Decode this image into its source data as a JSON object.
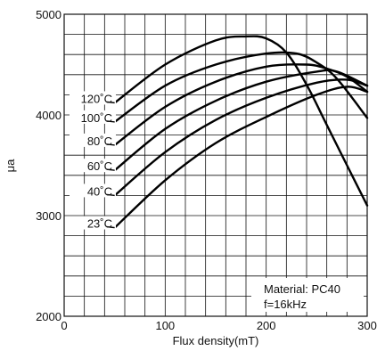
{
  "chart_data": {
    "type": "line",
    "title": "",
    "xlabel": "Flux density(mT)",
    "ylabel": "μa",
    "xlim": [
      0,
      300
    ],
    "ylim": [
      2000,
      5000
    ],
    "xticks": [
      0,
      100,
      200,
      300
    ],
    "yticks": [
      2000,
      3000,
      4000,
      5000
    ],
    "grid": true,
    "annotations": [
      "Material: PC40",
      "f=16kHz"
    ],
    "series": [
      {
        "name": "120˚C",
        "x": [
          50,
          100,
          150,
          180,
          200,
          220,
          240,
          260,
          280,
          300
        ],
        "y": [
          4120,
          4500,
          4740,
          4780,
          4760,
          4620,
          4300,
          3900,
          3500,
          3100
        ]
      },
      {
        "name": "100˚C",
        "x": [
          50,
          100,
          150,
          200,
          230,
          250,
          270,
          300
        ],
        "y": [
          3930,
          4290,
          4500,
          4610,
          4610,
          4520,
          4360,
          3970
        ]
      },
      {
        "name": "80˚C",
        "x": [
          50,
          100,
          150,
          200,
          240,
          260,
          280,
          300
        ],
        "y": [
          3700,
          4080,
          4330,
          4480,
          4500,
          4460,
          4380,
          4230
        ]
      },
      {
        "name": "60˚C",
        "x": [
          50,
          100,
          150,
          200,
          250,
          270,
          300
        ],
        "y": [
          3450,
          3860,
          4140,
          4330,
          4430,
          4430,
          4290
        ]
      },
      {
        "name": "40˚C",
        "x": [
          50,
          100,
          150,
          200,
          250,
          280,
          300
        ],
        "y": [
          3200,
          3630,
          3950,
          4170,
          4320,
          4350,
          4290
        ]
      },
      {
        "name": "23˚C",
        "x": [
          50,
          100,
          150,
          200,
          250,
          280,
          300
        ],
        "y": [
          2880,
          3350,
          3720,
          3980,
          4200,
          4280,
          4230
        ]
      }
    ]
  }
}
